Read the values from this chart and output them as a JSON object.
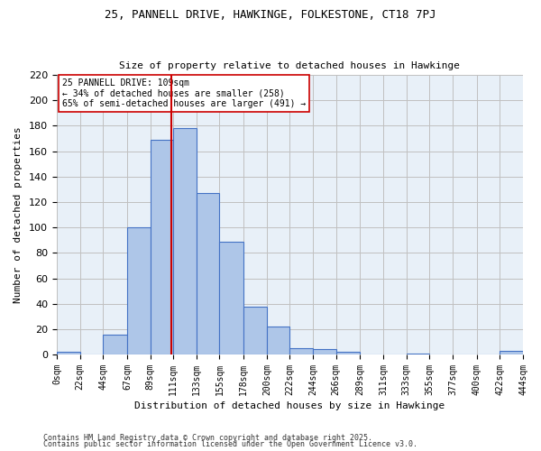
{
  "title1": "25, PANNELL DRIVE, HAWKINGE, FOLKESTONE, CT18 7PJ",
  "title2": "Size of property relative to detached houses in Hawkinge",
  "xlabel": "Distribution of detached houses by size in Hawkinge",
  "ylabel": "Number of detached properties",
  "bin_edges": [
    0,
    22,
    44,
    67,
    89,
    111,
    133,
    155,
    178,
    200,
    222,
    244,
    266,
    289,
    311,
    333,
    355,
    377,
    400,
    422,
    444
  ],
  "bar_heights": [
    2,
    0,
    16,
    100,
    169,
    178,
    127,
    89,
    38,
    22,
    5,
    4,
    2,
    0,
    0,
    1,
    0,
    0,
    0,
    3
  ],
  "bar_color": "#aec6e8",
  "bar_edge_color": "#4472c4",
  "property_size": 109,
  "vline_color": "#cc0000",
  "annotation_text": "25 PANNELL DRIVE: 109sqm\n← 34% of detached houses are smaller (258)\n65% of semi-detached houses are larger (491) →",
  "annotation_box_color": "#ffffff",
  "annotation_box_edge": "#cc0000",
  "ylim": [
    0,
    220
  ],
  "yticks": [
    0,
    20,
    40,
    60,
    80,
    100,
    120,
    140,
    160,
    180,
    200,
    220
  ],
  "background_color": "#ffffff",
  "grid_color": "#c0c0c0",
  "footer1": "Contains HM Land Registry data © Crown copyright and database right 2025.",
  "footer2": "Contains public sector information licensed under the Open Government Licence v3.0.",
  "tick_labels": [
    "0sqm",
    "22sqm",
    "44sqm",
    "67sqm",
    "89sqm",
    "111sqm",
    "133sqm",
    "155sqm",
    "178sqm",
    "200sqm",
    "222sqm",
    "244sqm",
    "266sqm",
    "289sqm",
    "311sqm",
    "333sqm",
    "355sqm",
    "377sqm",
    "400sqm",
    "422sqm",
    "444sqm"
  ]
}
